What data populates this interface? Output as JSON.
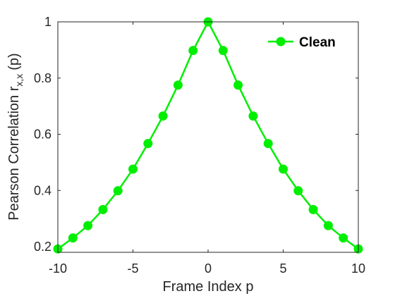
{
  "chart_data": {
    "type": "line",
    "title": "",
    "xlabel": "Frame Index p",
    "ylabel_main": "Pearson Correlation r",
    "ylabel_sub": "x,x",
    "ylabel_tail": "(p)",
    "xlim": [
      -10,
      10
    ],
    "ylim": [
      0.18,
      1.0
    ],
    "xticks": [
      -10,
      -5,
      0,
      5,
      10
    ],
    "yticks": [
      0.2,
      0.4,
      0.6,
      0.8,
      1
    ],
    "xtick_labels": [
      "-10",
      "-5",
      "0",
      "5",
      "10"
    ],
    "ytick_labels": [
      "0.2",
      "0.4",
      "0.6",
      "0.8",
      "1"
    ],
    "grid": false,
    "legend_position": "top-right",
    "series": [
      {
        "name": "Clean",
        "color": "#00ee00",
        "marker": "circle",
        "x": [
          -10,
          -9,
          -8,
          -7,
          -6,
          -5,
          -4,
          -3,
          -2,
          -1,
          0,
          1,
          2,
          3,
          4,
          5,
          6,
          7,
          8,
          9,
          10
        ],
        "y": [
          0.192,
          0.231,
          0.275,
          0.332,
          0.399,
          0.476,
          0.567,
          0.665,
          0.775,
          0.898,
          1.0,
          0.898,
          0.775,
          0.665,
          0.567,
          0.476,
          0.399,
          0.332,
          0.275,
          0.231,
          0.192
        ]
      }
    ]
  }
}
